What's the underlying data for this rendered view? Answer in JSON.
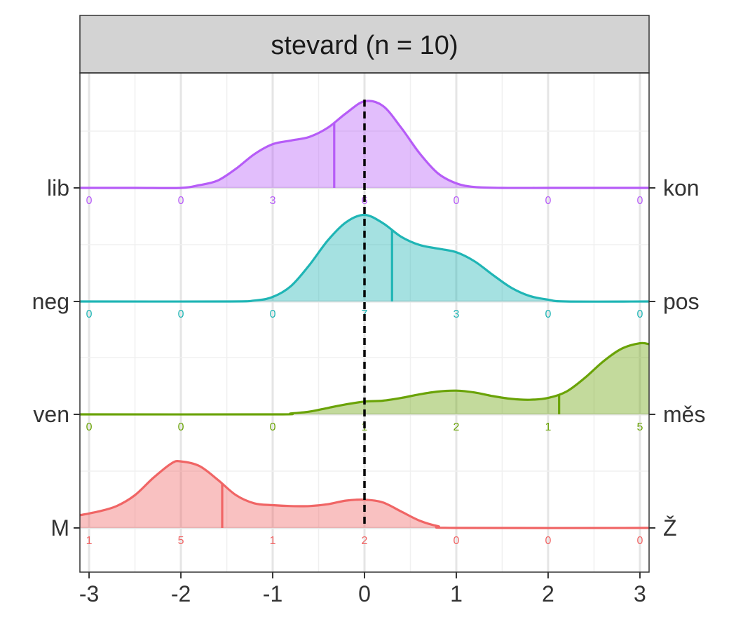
{
  "chart_data": {
    "type": "area",
    "title": "stevard (n = 10)",
    "xlim": [
      -3.1,
      3.1
    ],
    "x_ticks": [
      "-3",
      "-2",
      "-1",
      "0",
      "1",
      "2",
      "3"
    ],
    "x_tick_values": [
      -3,
      -2,
      -1,
      0,
      1,
      2,
      3
    ],
    "reference_line_x": 0,
    "grid": true,
    "series": [
      {
        "left_label": "lib",
        "right_label": "kon",
        "color": "#B65CF7",
        "median": -0.33,
        "count_labels": [
          "0",
          "0",
          "3",
          "6",
          "0",
          "0",
          "0"
        ],
        "density": [
          [
            -3.1,
            0.0
          ],
          [
            -2.5,
            0.0
          ],
          [
            -2.0,
            0.0
          ],
          [
            -1.8,
            0.03
          ],
          [
            -1.6,
            0.08
          ],
          [
            -1.4,
            0.21
          ],
          [
            -1.2,
            0.37
          ],
          [
            -1.0,
            0.48
          ],
          [
            -0.8,
            0.52
          ],
          [
            -0.6,
            0.56
          ],
          [
            -0.4,
            0.66
          ],
          [
            -0.2,
            0.82
          ],
          [
            0.0,
            0.95
          ],
          [
            0.2,
            0.9
          ],
          [
            0.4,
            0.66
          ],
          [
            0.6,
            0.38
          ],
          [
            0.8,
            0.16
          ],
          [
            1.0,
            0.05
          ],
          [
            1.2,
            0.01
          ],
          [
            1.5,
            0.0
          ],
          [
            2.0,
            0.0
          ],
          [
            2.5,
            0.0
          ],
          [
            3.1,
            0.0
          ]
        ]
      },
      {
        "left_label": "neg",
        "right_label": "pos",
        "color": "#1FB5B5",
        "median": 0.3,
        "count_labels": [
          "0",
          "0",
          "0",
          "7",
          "3",
          "0",
          "0"
        ],
        "density": [
          [
            -3.1,
            0.0
          ],
          [
            -1.5,
            0.0
          ],
          [
            -1.2,
            0.01
          ],
          [
            -1.0,
            0.05
          ],
          [
            -0.8,
            0.17
          ],
          [
            -0.6,
            0.4
          ],
          [
            -0.4,
            0.67
          ],
          [
            -0.2,
            0.87
          ],
          [
            0.0,
            0.95
          ],
          [
            0.2,
            0.86
          ],
          [
            0.4,
            0.71
          ],
          [
            0.6,
            0.62
          ],
          [
            0.8,
            0.58
          ],
          [
            1.0,
            0.54
          ],
          [
            1.2,
            0.44
          ],
          [
            1.4,
            0.29
          ],
          [
            1.6,
            0.15
          ],
          [
            1.8,
            0.06
          ],
          [
            2.0,
            0.02
          ],
          [
            2.2,
            0.0
          ],
          [
            3.1,
            0.0
          ]
        ]
      },
      {
        "left_label": "ven",
        "right_label": "měs",
        "color": "#6AA307",
        "median": 2.12,
        "count_labels": [
          "0",
          "0",
          "0",
          "1",
          "2",
          "1",
          "5"
        ],
        "density": [
          [
            -3.1,
            0.0
          ],
          [
            -1.0,
            0.0
          ],
          [
            -0.8,
            0.01
          ],
          [
            -0.6,
            0.03
          ],
          [
            -0.4,
            0.07
          ],
          [
            -0.2,
            0.11
          ],
          [
            0.0,
            0.14
          ],
          [
            0.2,
            0.15
          ],
          [
            0.4,
            0.18
          ],
          [
            0.6,
            0.22
          ],
          [
            0.8,
            0.25
          ],
          [
            1.0,
            0.26
          ],
          [
            1.2,
            0.24
          ],
          [
            1.4,
            0.2
          ],
          [
            1.6,
            0.17
          ],
          [
            1.8,
            0.16
          ],
          [
            2.0,
            0.18
          ],
          [
            2.2,
            0.25
          ],
          [
            2.4,
            0.4
          ],
          [
            2.6,
            0.58
          ],
          [
            2.8,
            0.72
          ],
          [
            3.0,
            0.78
          ],
          [
            3.1,
            0.77
          ]
        ]
      },
      {
        "left_label": "M",
        "right_label": "Ž",
        "color": "#F06565",
        "median": -1.55,
        "count_labels": [
          "1",
          "5",
          "1",
          "2",
          "0",
          "0",
          "0"
        ],
        "density": [
          [
            -3.1,
            0.14
          ],
          [
            -2.9,
            0.18
          ],
          [
            -2.7,
            0.24
          ],
          [
            -2.5,
            0.36
          ],
          [
            -2.3,
            0.55
          ],
          [
            -2.1,
            0.71
          ],
          [
            -2.0,
            0.73
          ],
          [
            -1.8,
            0.68
          ],
          [
            -1.6,
            0.53
          ],
          [
            -1.4,
            0.36
          ],
          [
            -1.2,
            0.27
          ],
          [
            -1.0,
            0.25
          ],
          [
            -0.8,
            0.24
          ],
          [
            -0.6,
            0.24
          ],
          [
            -0.4,
            0.26
          ],
          [
            -0.2,
            0.3
          ],
          [
            0.0,
            0.31
          ],
          [
            0.2,
            0.28
          ],
          [
            0.4,
            0.18
          ],
          [
            0.6,
            0.08
          ],
          [
            0.8,
            0.02
          ],
          [
            1.0,
            0.0
          ],
          [
            3.1,
            0.0
          ]
        ]
      }
    ]
  }
}
